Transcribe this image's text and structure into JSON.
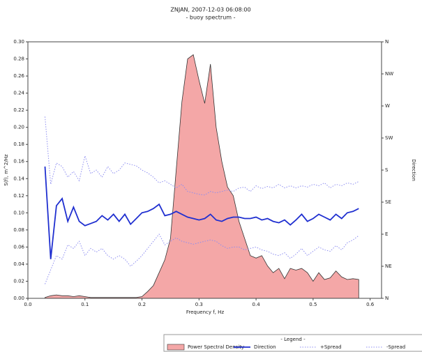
{
  "chart_data": {
    "type": "spectrum",
    "title": "ZNJAN, 2007-12-03 06:08:00",
    "subtitle": "- buoy spectrum -",
    "x_label": "Frequency f, Hz",
    "y_label": "S(f), m^2/Hz",
    "y2_label": "Direction",
    "legend_title": "- Legend -",
    "x": [
      0.03,
      0.04,
      0.05,
      0.06,
      0.07,
      0.08,
      0.09,
      0.1,
      0.11,
      0.12,
      0.13,
      0.14,
      0.15,
      0.16,
      0.17,
      0.18,
      0.19,
      0.2,
      0.21,
      0.22,
      0.23,
      0.24,
      0.25,
      0.26,
      0.27,
      0.28,
      0.29,
      0.3,
      0.31,
      0.32,
      0.33,
      0.34,
      0.35,
      0.36,
      0.37,
      0.38,
      0.39,
      0.4,
      0.41,
      0.42,
      0.43,
      0.44,
      0.45,
      0.46,
      0.47,
      0.48,
      0.49,
      0.5,
      0.51,
      0.52,
      0.53,
      0.54,
      0.55,
      0.56,
      0.57,
      0.58
    ],
    "series": [
      {
        "name": "Power Spectral Density",
        "color": "#f4a7a7",
        "style": "area",
        "axis": "y",
        "values": [
          0.001,
          0.003,
          0.004,
          0.003,
          0.003,
          0.002,
          0.003,
          0.002,
          0.001,
          0.001,
          0.001,
          0.001,
          0.001,
          0.001,
          0.001,
          0.001,
          0.001,
          0.002,
          0.008,
          0.015,
          0.03,
          0.045,
          0.07,
          0.15,
          0.23,
          0.28,
          0.285,
          0.255,
          0.228,
          0.274,
          0.2,
          0.16,
          0.13,
          0.12,
          0.09,
          0.07,
          0.05,
          0.047,
          0.05,
          0.038,
          0.03,
          0.035,
          0.023,
          0.035,
          0.033,
          0.035,
          0.03,
          0.02,
          0.03,
          0.022,
          0.024,
          0.032,
          0.025,
          0.022,
          0.023,
          0.022
        ]
      },
      {
        "name": "Direction",
        "color": "#1f2fd0",
        "style": "solid",
        "axis": "y2",
        "values": [
          185,
          55,
          130,
          140,
          108,
          128,
          108,
          102,
          105,
          108,
          116,
          110,
          118,
          108,
          118,
          104,
          112,
          120,
          122,
          126,
          132,
          116,
          118,
          122,
          118,
          114,
          112,
          110,
          112,
          118,
          110,
          108,
          112,
          114,
          114,
          112,
          112,
          114,
          110,
          112,
          108,
          106,
          110,
          103,
          110,
          118,
          108,
          112,
          118,
          114,
          110,
          118,
          112,
          120,
          122,
          126
        ]
      },
      {
        "name": "+Spread",
        "color": "#8c8cf0",
        "style": "dotted",
        "axis": "y2",
        "values": [
          255,
          160,
          190,
          185,
          170,
          178,
          165,
          200,
          175,
          180,
          170,
          185,
          175,
          180,
          190,
          188,
          186,
          180,
          176,
          170,
          162,
          165,
          160,
          155,
          160,
          150,
          148,
          146,
          145,
          150,
          148,
          150,
          152,
          150,
          155,
          156,
          150,
          158,
          154,
          157,
          155,
          160,
          155,
          158,
          155,
          158,
          156,
          160,
          158,
          162,
          155,
          160,
          158,
          162,
          160,
          164
        ]
      },
      {
        "name": "-Spread",
        "color": "#8c8cf0",
        "style": "dotted",
        "axis": "y2",
        "values": [
          20,
          40,
          60,
          55,
          75,
          70,
          80,
          60,
          70,
          65,
          70,
          60,
          55,
          60,
          55,
          45,
          52,
          60,
          70,
          80,
          90,
          75,
          80,
          85,
          80,
          78,
          76,
          78,
          80,
          82,
          80,
          74,
          70,
          72,
          72,
          68,
          70,
          72,
          68,
          66,
          62,
          60,
          64,
          56,
          62,
          70,
          60,
          66,
          72,
          68,
          66,
          74,
          68,
          78,
          82,
          88
        ]
      }
    ],
    "xlim": [
      0,
      0.62
    ],
    "xticks": [
      {
        "value": 0,
        "label": "0.0"
      },
      0.1,
      0.2,
      0.3,
      0.4,
      0.5,
      0.6
    ],
    "ylim": [
      0,
      0.3
    ],
    "yticks": [
      {
        "value": 0,
        "label": "0.00"
      },
      0.02,
      0.04,
      0.06,
      0.08,
      {
        "value": 0.1,
        "label": "0.10"
      },
      0.12,
      0.14,
      0.16,
      0.18,
      {
        "value": 0.2,
        "label": "0.20"
      },
      0.22,
      0.24,
      0.26,
      0.28,
      {
        "value": 0.3,
        "label": "0.30"
      }
    ],
    "y2lim": [
      0,
      360
    ],
    "y2ticks": [
      {
        "value": 0,
        "label": "N"
      },
      {
        "value": 45,
        "label": "NE"
      },
      {
        "value": 90,
        "label": "E"
      },
      {
        "value": 135,
        "label": "SE"
      },
      {
        "value": 180,
        "label": "S"
      },
      {
        "value": 225,
        "label": "SW"
      },
      {
        "value": 270,
        "label": "W"
      },
      {
        "value": 315,
        "label": "NW"
      },
      {
        "value": 360,
        "label": "N"
      }
    ]
  }
}
